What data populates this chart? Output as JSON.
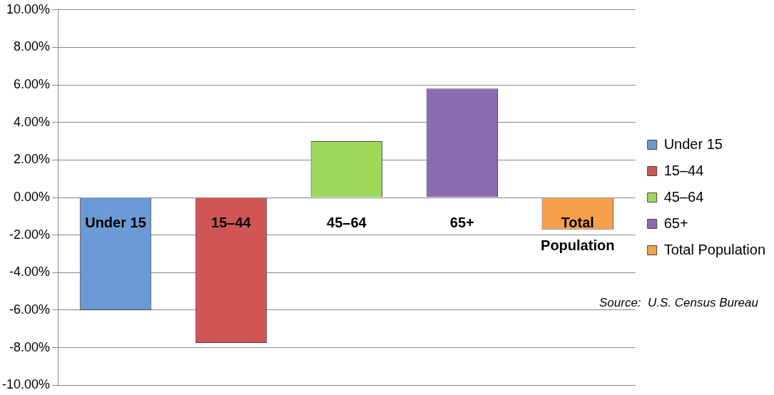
{
  "chart_data": {
    "type": "bar",
    "categories": [
      "Under 15",
      "15–44",
      "45–64",
      "65+",
      "Total Population"
    ],
    "series": [
      {
        "name": "Under 15",
        "color": "#6b9bd4",
        "values": [
          -6.0,
          null,
          null,
          null,
          null
        ]
      },
      {
        "name": "15–44",
        "color": "#d05656",
        "values": [
          null,
          -7.75,
          null,
          null,
          null
        ]
      },
      {
        "name": "45–64",
        "color": "#9dd95a",
        "values": [
          null,
          null,
          3.0,
          null,
          null
        ]
      },
      {
        "name": "65+",
        "color": "#8b6bb0",
        "values": [
          null,
          null,
          null,
          5.8,
          null
        ]
      },
      {
        "name": "Total Population",
        "color": "#f6a04c",
        "values": [
          null,
          null,
          null,
          null,
          -1.7
        ]
      }
    ],
    "ylim": [
      -10,
      10
    ],
    "yticks": [
      {
        "value": -10,
        "label": "-10.00%"
      },
      {
        "value": -8,
        "label": "-8.00%"
      },
      {
        "value": -6,
        "label": "-6.00%"
      },
      {
        "value": -4,
        "label": "-4.00%"
      },
      {
        "value": -2,
        "label": "-2.00%"
      },
      {
        "value": 0,
        "label": "0.00%"
      },
      {
        "value": 2,
        "label": "2.00%"
      },
      {
        "value": 4,
        "label": "4.00%"
      },
      {
        "value": 6,
        "label": "6.00%"
      },
      {
        "value": 8,
        "label": "8.00%"
      },
      {
        "value": 10,
        "label": "10.00%"
      }
    ],
    "grid": "y",
    "legend": "right",
    "annotations": [
      "Source:  U.S. Census Bureau"
    ]
  }
}
